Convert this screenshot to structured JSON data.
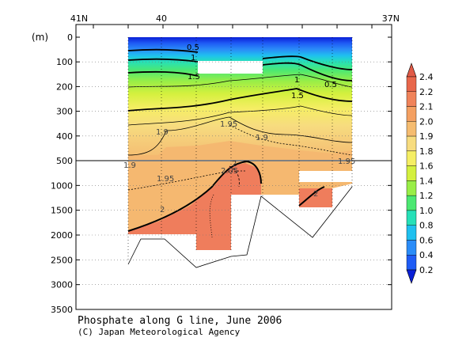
{
  "chart_data": {
    "type": "heatmap",
    "title": "Phosphate along G line, June 2006",
    "credit": "(C) Japan Meteorological Agency",
    "y_unit": "(m)",
    "x_ticks": [
      "41N",
      "40",
      "37N"
    ],
    "y_ticks_upper": [
      0,
      100,
      200,
      300,
      400,
      500
    ],
    "y_ticks_lower": [
      1000,
      1500,
      2000,
      2500,
      3000,
      3500
    ],
    "y_break_at": 500,
    "colorbar": {
      "levels": [
        0.2,
        0.4,
        0.6,
        0.8,
        1.0,
        1.2,
        1.4,
        1.6,
        1.8,
        1.9,
        2.0,
        2.1,
        2.2,
        2.4
      ],
      "level_labels": [
        "0.2",
        "0.4",
        "0.6",
        "0.8",
        "1.0",
        "1.2",
        "1.4",
        "1.6",
        "1.8",
        "1.9",
        "2.0",
        "2.1",
        "2.2",
        "2.4"
      ],
      "colors": [
        "#0a1fd6",
        "#1f5cf5",
        "#2a8cf8",
        "#1fc0ef",
        "#26e0b8",
        "#4ce872",
        "#99ee47",
        "#d4f03e",
        "#f5ee64",
        "#f7dc7f",
        "#f5bc70",
        "#f4a062",
        "#f0835a",
        "#e8674b",
        "#e15a47"
      ]
    },
    "contour_labels": [
      "0.5",
      "1",
      "1.5",
      "1",
      "0.5",
      "1.5",
      "1.9",
      "1.95",
      "1.9",
      "1.9",
      "1.95",
      "1.95",
      "2.05",
      "2",
      "2",
      "2",
      "1.95"
    ]
  }
}
